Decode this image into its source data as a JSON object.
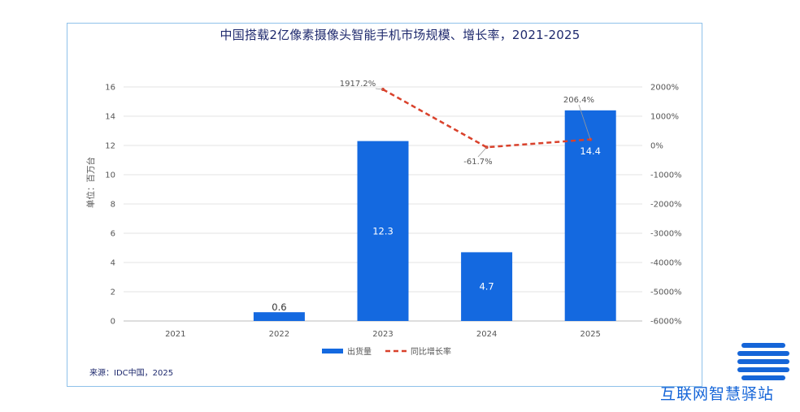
{
  "chart_data": {
    "type": "bar",
    "title": "中国搭载2亿像素摄像头智能手机市场规模、增长率，2021-2025",
    "ylabel": "单位：百万台",
    "categories": [
      "2021",
      "2022",
      "2023",
      "2024",
      "2025"
    ],
    "ylim": [
      0,
      16
    ],
    "yticks": [
      "0",
      "2",
      "4",
      "6",
      "8",
      "10",
      "12",
      "14",
      "16"
    ],
    "y2lim": [
      -6000,
      2000
    ],
    "y2ticks": [
      "-6000%",
      "-5000%",
      "-4000%",
      "-3000%",
      "-2000%",
      "-1000%",
      "0%",
      "1000%",
      "2000%"
    ],
    "series": [
      {
        "name": "出货量",
        "type": "bar",
        "color": "#1469e0",
        "values": [
          null,
          0.6,
          12.3,
          4.7,
          14.4
        ],
        "labels": [
          "",
          "0.6",
          "12.3",
          "4.7",
          "14.4"
        ]
      },
      {
        "name": "同比增长率",
        "type": "line",
        "axis": "right",
        "color": "#d9412b",
        "values": [
          null,
          null,
          1917.2,
          -61.7,
          206.4
        ],
        "labels": [
          "",
          "",
          "1917.2%",
          "-61.7%",
          "206.4%"
        ]
      }
    ],
    "legend_position": "bottom",
    "grid": true
  },
  "source": "来源：IDC中国，2025",
  "watermark": "互联网智慧驿站"
}
